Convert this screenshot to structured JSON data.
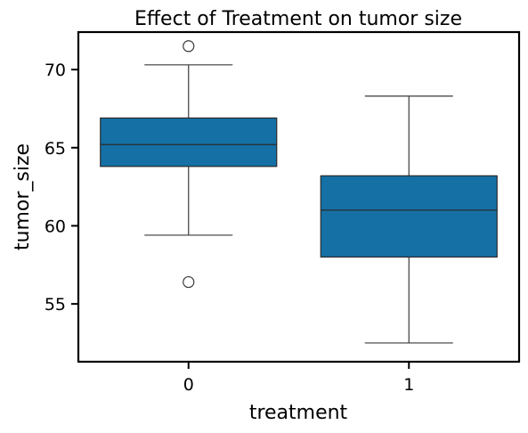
{
  "chart_data": {
    "type": "box",
    "title": "Effect of Treatment on tumor size",
    "xlabel": "treatment",
    "ylabel": "tumor_size",
    "categories": [
      "0",
      "1"
    ],
    "ylim": [
      51.3,
      72.4
    ],
    "yticks": [
      55,
      60,
      65,
      70
    ],
    "box_color": "#1470a5",
    "grid": false,
    "boxes": [
      {
        "category": "0",
        "whisker_low": 59.4,
        "q1": 63.8,
        "median": 65.2,
        "q3": 66.9,
        "whisker_high": 70.3,
        "fliers": [
          71.5,
          56.4
        ]
      },
      {
        "category": "1",
        "whisker_low": 52.5,
        "q1": 58.0,
        "median": 61.0,
        "q3": 63.2,
        "whisker_high": 68.3,
        "fliers": []
      }
    ]
  }
}
